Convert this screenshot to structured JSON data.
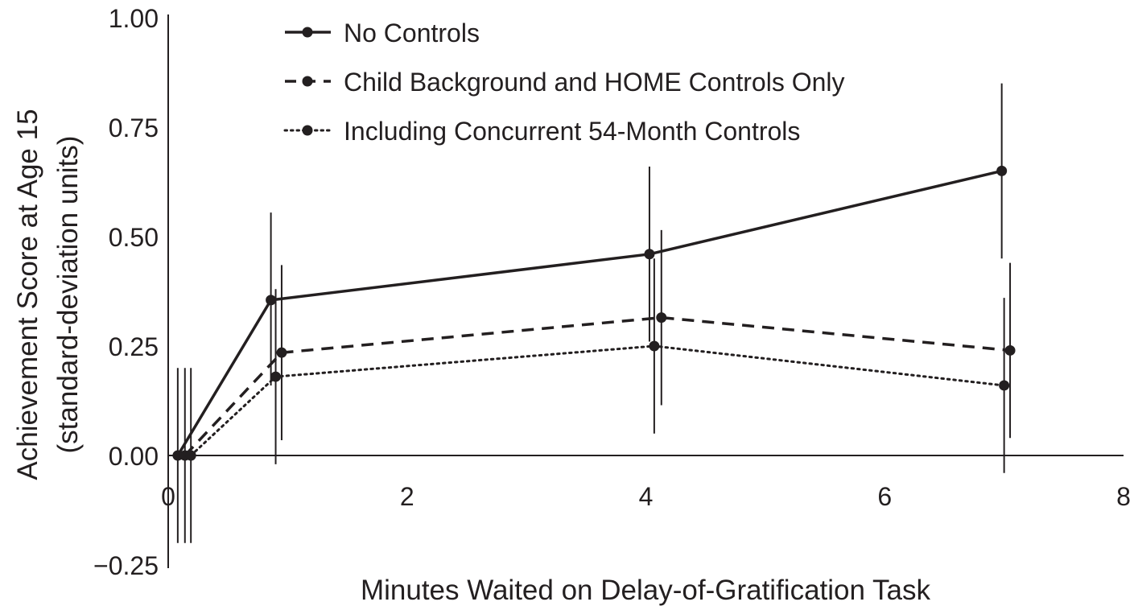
{
  "chart_data": {
    "type": "line",
    "title": "",
    "xlabel": "Minutes Waited on Delay-of-Gratification Task",
    "ylabel_line1": "Achievement Score at Age 15",
    "ylabel_line2": "(standard-deviation units)",
    "xlim": [
      0,
      8
    ],
    "ylim": [
      -0.25,
      1.0
    ],
    "x_ticks": [
      {
        "value": 0,
        "label": "0"
      },
      {
        "value": 2,
        "label": "2"
      },
      {
        "value": 4,
        "label": "4"
      },
      {
        "value": 6,
        "label": "6"
      },
      {
        "value": 8,
        "label": "8"
      }
    ],
    "y_ticks": [
      {
        "value": 1.0,
        "label": "1.00"
      },
      {
        "value": 0.75,
        "label": "0.75"
      },
      {
        "value": 0.5,
        "label": "0.50"
      },
      {
        "value": 0.25,
        "label": "0.25"
      },
      {
        "value": 0.0,
        "label": "0.00"
      },
      {
        "value": -0.25,
        "label": "−0.25"
      }
    ],
    "grid": false,
    "legend_position": "top-left",
    "series": [
      {
        "name": "No Controls",
        "style": "solid",
        "points": [
          {
            "x": 0.08,
            "y": 0.0,
            "lo": -0.2,
            "hi": 0.2
          },
          {
            "x": 0.86,
            "y": 0.355,
            "lo": 0.16,
            "hi": 0.555
          },
          {
            "x": 4.03,
            "y": 0.46,
            "lo": 0.26,
            "hi": 0.66
          },
          {
            "x": 6.98,
            "y": 0.65,
            "lo": 0.45,
            "hi": 0.85
          }
        ]
      },
      {
        "name": "Child Background and HOME Controls Only",
        "style": "dashed",
        "points": [
          {
            "x": 0.14,
            "y": 0.0,
            "lo": -0.2,
            "hi": 0.2
          },
          {
            "x": 0.95,
            "y": 0.235,
            "lo": 0.035,
            "hi": 0.435
          },
          {
            "x": 4.13,
            "y": 0.315,
            "lo": 0.115,
            "hi": 0.515
          },
          {
            "x": 7.05,
            "y": 0.24,
            "lo": 0.04,
            "hi": 0.44
          }
        ]
      },
      {
        "name": "Including Concurrent 54-Month Controls",
        "style": "dotted",
        "points": [
          {
            "x": 0.19,
            "y": 0.0,
            "lo": -0.2,
            "hi": 0.2
          },
          {
            "x": 0.9,
            "y": 0.18,
            "lo": -0.02,
            "hi": 0.38
          },
          {
            "x": 4.07,
            "y": 0.25,
            "lo": 0.05,
            "hi": 0.45
          },
          {
            "x": 7.0,
            "y": 0.16,
            "lo": -0.04,
            "hi": 0.36
          }
        ]
      }
    ]
  }
}
